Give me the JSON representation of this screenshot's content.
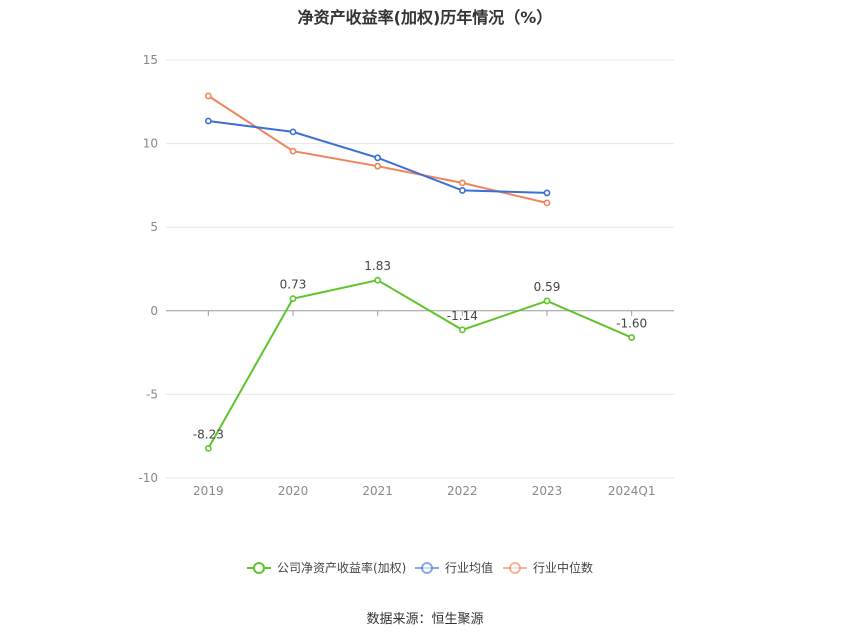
{
  "chart_data": {
    "type": "line",
    "title": "净资产收益率(加权)历年情况（%）",
    "categories": [
      "2019",
      "2020",
      "2021",
      "2022",
      "2023",
      "2024Q1"
    ],
    "ylim": [
      -10,
      15
    ],
    "yticks": [
      15,
      10,
      5,
      0,
      -5,
      -10
    ],
    "grid": true,
    "legend_position": "bottom",
    "series": [
      {
        "name": "公司净资产收益率(加权)",
        "color": "#5fc42b",
        "values": [
          -8.23,
          0.73,
          1.83,
          -1.14,
          0.59,
          -1.6
        ],
        "labels": [
          "-8.23",
          "0.73",
          "1.83",
          "-1.14",
          "0.59",
          "-1.60"
        ]
      },
      {
        "name": "行业均值",
        "color": "#3b6fd6",
        "values": [
          11.35,
          10.7,
          9.15,
          7.2,
          7.05,
          null
        ]
      },
      {
        "name": "行业中位数",
        "color": "#f0845a",
        "values": [
          12.85,
          9.55,
          8.65,
          7.65,
          6.45,
          null
        ]
      }
    ]
  },
  "source": "数据来源：恒生聚源"
}
